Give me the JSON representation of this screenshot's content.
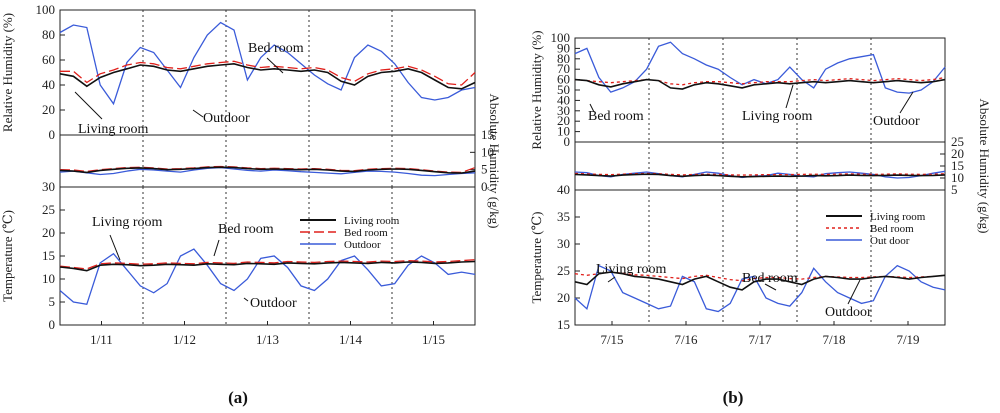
{
  "chart_data": [
    {
      "type": "line",
      "caption": "(a)",
      "x_ticks": [
        "1/11",
        "1/12",
        "1/13",
        "1/14",
        "1/15"
      ],
      "series_names": [
        "Living room",
        "Bed room",
        "Outdoor"
      ],
      "colors": {
        "living": "#111111",
        "bed": "#e0201b",
        "outdoor": "#3a5bd9"
      },
      "legend_position": "right of temperature panel",
      "panels": [
        {
          "id": "rh",
          "ylabel": "Relative  Humidity  (%)",
          "ylim": [
            0,
            100
          ],
          "yticks": [
            "0",
            "20",
            "40",
            "60",
            "80",
            "100"
          ],
          "tick_values": [
            0,
            20,
            40,
            60,
            80,
            100
          ],
          "annotations": [
            "Bed room",
            "Living room",
            "Outdoor"
          ],
          "series": {
            "living": [
              49,
              47,
              39,
              46,
              50,
              53,
              56,
              55,
              52,
              51,
              53,
              55,
              56,
              57,
              54,
              52,
              53,
              52,
              51,
              52,
              50,
              43,
              40,
              47,
              50,
              51,
              53,
              50,
              44,
              38,
              37,
              42
            ],
            "bed": [
              51,
              51,
              42,
              49,
              52,
              56,
              58,
              57,
              54,
              53,
              55,
              57,
              58,
              59,
              56,
              54,
              55,
              54,
              53,
              54,
              52,
              46,
              43,
              49,
              52,
              53,
              55,
              52,
              47,
              41,
              40,
              50
            ],
            "outdoor": [
              82,
              88,
              86,
              40,
              25,
              58,
              70,
              66,
              52,
              38,
              62,
              80,
              90,
              84,
              44,
              62,
              72,
              66,
              57,
              48,
              41,
              36,
              62,
              72,
              67,
              57,
              42,
              30,
              28,
              30,
              36,
              38
            ]
          }
        },
        {
          "id": "ah",
          "ylabel": "Absolute  Humidity  (g/kg)",
          "ylim": [
            0,
            15
          ],
          "yticks": [
            "0",
            "5",
            "10",
            "15"
          ],
          "tick_values": [
            0,
            5,
            10,
            15
          ],
          "series": {
            "living": [
              4.8,
              4.6,
              4.2,
              4.8,
              5.1,
              5.4,
              5.5,
              5.3,
              5.0,
              5.1,
              5.3,
              5.6,
              5.7,
              5.6,
              5.3,
              5.1,
              5.2,
              5.1,
              5.0,
              5.1,
              4.9,
              4.6,
              4.5,
              4.9,
              5.1,
              5.2,
              5.1,
              4.8,
              4.4,
              4.1,
              4.0,
              4.6
            ],
            "bed": [
              5.0,
              4.9,
              4.5,
              5.0,
              5.3,
              5.6,
              5.7,
              5.5,
              5.2,
              5.3,
              5.5,
              5.8,
              5.9,
              5.8,
              5.5,
              5.3,
              5.4,
              5.3,
              5.2,
              5.3,
              5.1,
              4.8,
              4.7,
              5.1,
              5.3,
              5.4,
              5.3,
              5.0,
              4.6,
              4.3,
              4.2,
              5.6
            ],
            "outdoor": [
              4.3,
              4.6,
              4.1,
              3.6,
              3.9,
              4.6,
              5.1,
              4.9,
              4.6,
              4.3,
              4.9,
              5.4,
              5.6,
              5.2,
              4.8,
              4.6,
              4.9,
              4.7,
              4.4,
              4.2,
              4.0,
              3.8,
              4.2,
              4.6,
              4.5,
              4.3,
              3.9,
              3.4,
              3.3,
              3.6,
              3.9,
              4.1
            ]
          }
        },
        {
          "id": "temp",
          "ylabel": "Temperature  (℃)",
          "ylim": [
            0,
            30
          ],
          "yticks": [
            "0",
            "5",
            "10",
            "15",
            "20",
            "25",
            "30"
          ],
          "tick_values": [
            0,
            5,
            10,
            15,
            20,
            25,
            30
          ],
          "annotations": [
            "Living room",
            "Bed room",
            "Outdoor"
          ],
          "series": {
            "living": [
              12.6,
              12.3,
              11.8,
              13.0,
              13.2,
              13.1,
              12.9,
              13.0,
              13.2,
              13.1,
              13.0,
              13.3,
              13.2,
              13.1,
              13.4,
              13.3,
              13.2,
              13.5,
              13.4,
              13.3,
              13.5,
              13.6,
              13.5,
              13.4,
              13.6,
              13.5,
              13.7,
              13.6,
              13.4,
              13.5,
              13.7,
              13.8
            ],
            "bed": [
              12.8,
              12.5,
              12.2,
              13.3,
              13.5,
              13.4,
              13.2,
              13.3,
              13.5,
              13.4,
              13.3,
              13.6,
              13.5,
              13.4,
              13.7,
              13.6,
              13.5,
              13.8,
              13.7,
              13.6,
              13.8,
              13.9,
              13.8,
              13.7,
              13.9,
              13.8,
              14.0,
              13.9,
              13.7,
              13.8,
              14.0,
              14.2
            ],
            "outdoor": [
              7.5,
              5.0,
              4.5,
              13.5,
              15.5,
              12.0,
              8.5,
              7.0,
              9.0,
              15.0,
              16.5,
              13.0,
              9.0,
              7.5,
              10.0,
              14.5,
              15.0,
              12.5,
              8.5,
              7.5,
              10.0,
              14.0,
              15.0,
              12.0,
              8.5,
              9.0,
              13.0,
              15.0,
              13.5,
              11.0,
              11.5,
              11.0
            ]
          }
        }
      ],
      "legend": [
        "Living room",
        "Bed room",
        "Outdoor"
      ]
    },
    {
      "type": "line",
      "caption": "(b)",
      "x_ticks": [
        "7/15",
        "7/16",
        "7/17",
        "7/18",
        "7/19"
      ],
      "series_names": [
        "Living room",
        "Bed room",
        "Out door"
      ],
      "colors": {
        "living": "#111111",
        "bed": "#e0201b",
        "outdoor": "#3a5bd9"
      },
      "legend_position": "right of temperature panel",
      "panels": [
        {
          "id": "rh",
          "ylabel": "Relative Humidity  (%)",
          "ylim": [
            0,
            100
          ],
          "yticks": [
            "0",
            "10",
            "20",
            "30",
            "40",
            "50",
            "60",
            "70",
            "80",
            "90",
            "100"
          ],
          "tick_values": [
            0,
            10,
            20,
            30,
            40,
            50,
            60,
            70,
            80,
            90,
            100
          ],
          "annotations": [
            "Bed room",
            "Living room",
            "Outdoor"
          ],
          "series": {
            "living": [
              60,
              59,
              55,
              53,
              56,
              58,
              60,
              59,
              52,
              51,
              55,
              57,
              56,
              54,
              52,
              55,
              56,
              57,
              56,
              57,
              58,
              57,
              58,
              59,
              58,
              57,
              58,
              59,
              58,
              57,
              58,
              60
            ],
            "bed": [
              60,
              59,
              58,
              57,
              58,
              59,
              60,
              59,
              56,
              55,
              57,
              58,
              58,
              57,
              56,
              57,
              58,
              58,
              58,
              59,
              60,
              59,
              60,
              61,
              60,
              59,
              60,
              61,
              60,
              59,
              60,
              62
            ],
            "outdoor": [
              85,
              90,
              62,
              48,
              52,
              58,
              70,
              92,
              96,
              85,
              80,
              74,
              70,
              62,
              55,
              60,
              56,
              60,
              72,
              60,
              52,
              70,
              76,
              80,
              82,
              84,
              52,
              48,
              47,
              50,
              58,
              72
            ]
          }
        },
        {
          "id": "ah",
          "ylabel": "Absolute Humidity (g/kg)",
          "ylim": [
            5,
            25
          ],
          "yticks": [
            "5",
            "10",
            "15",
            "20",
            "25"
          ],
          "tick_values": [
            5,
            10,
            15,
            20,
            25
          ],
          "series": {
            "living": [
              11.5,
              11.3,
              11.0,
              10.8,
              11.2,
              11.4,
              11.6,
              11.5,
              11.0,
              10.7,
              11.0,
              11.2,
              11.0,
              10.7,
              10.5,
              10.6,
              10.7,
              10.8,
              10.7,
              10.8,
              11.0,
              10.9,
              11.0,
              11.2,
              11.1,
              11.0,
              11.1,
              11.2,
              11.1,
              11.0,
              11.1,
              11.3
            ],
            "bed": [
              11.9,
              11.7,
              11.5,
              11.4,
              11.6,
              11.8,
              11.9,
              11.8,
              11.5,
              11.3,
              11.5,
              11.6,
              11.5,
              11.3,
              11.2,
              11.3,
              11.4,
              11.4,
              11.4,
              11.5,
              11.6,
              11.5,
              11.6,
              11.7,
              11.6,
              11.5,
              11.6,
              11.7,
              11.6,
              11.5,
              11.6,
              11.8
            ],
            "outdoor": [
              12.5,
              12.2,
              11.0,
              10.5,
              11.5,
              12.0,
              12.5,
              11.8,
              11.0,
              10.5,
              11.5,
              12.5,
              12.0,
              11.0,
              10.2,
              10.8,
              11.0,
              12.0,
              11.5,
              10.8,
              10.5,
              11.8,
              12.2,
              12.5,
              12.0,
              11.5,
              10.5,
              10.0,
              10.2,
              11.0,
              12.0,
              12.8
            ]
          }
        },
        {
          "id": "temp",
          "ylabel": "Temperature  (℃)",
          "ylim": [
            15,
            40
          ],
          "yticks": [
            "15",
            "20",
            "25",
            "30",
            "35",
            "40"
          ],
          "tick_values": [
            15,
            20,
            25,
            30,
            35,
            40
          ],
          "annotations": [
            "Living room",
            "Bed room",
            "Outdoor"
          ],
          "series": {
            "living": [
              23.0,
              22.5,
              24.5,
              24.8,
              24.5,
              24.0,
              23.8,
              23.5,
              23.0,
              22.5,
              23.5,
              24.0,
              23.0,
              22.0,
              21.5,
              23.0,
              23.5,
              23.5,
              23.0,
              22.5,
              23.5,
              24.0,
              23.8,
              23.5,
              23.5,
              23.8,
              24.0,
              23.8,
              23.5,
              23.8,
              24.0,
              24.2
            ],
            "bed": [
              24.5,
              24.2,
              24.5,
              24.8,
              24.6,
              24.3,
              24.2,
              24.0,
              23.8,
              23.6,
              24.0,
              24.2,
              23.8,
              23.4,
              23.2,
              23.6,
              23.8,
              23.8,
              23.6,
              23.5,
              23.8,
              24.0,
              23.9,
              23.8,
              23.8,
              23.9,
              24.0,
              23.9,
              23.8,
              23.9,
              24.0,
              24.2
            ],
            "outdoor": [
              20.0,
              18.0,
              26.0,
              25.0,
              21.0,
              20.0,
              19.0,
              18.0,
              18.5,
              24.0,
              23.0,
              18.0,
              17.5,
              19.0,
              23.5,
              24.0,
              20.0,
              19.0,
              18.5,
              21.0,
              25.5,
              23.0,
              21.0,
              20.0,
              19.0,
              19.5,
              24.0,
              26.0,
              25.0,
              23.0,
              22.0,
              21.5
            ]
          }
        }
      ],
      "legend": [
        "Living room",
        "Bed room",
        "Out door"
      ]
    }
  ]
}
